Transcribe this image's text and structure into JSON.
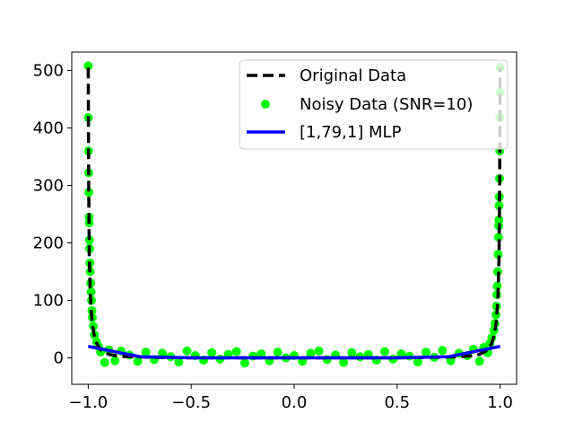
{
  "chart_data": {
    "type": "line",
    "title": "",
    "xlabel": "",
    "ylabel": "",
    "xlim": [
      -1.08,
      1.08
    ],
    "ylim": [
      -46,
      532
    ],
    "grid": false,
    "legend_placement": "top-right",
    "x_ticks": [
      -1.0,
      -0.5,
      0.0,
      0.5,
      1.0
    ],
    "x_tick_labels": [
      "−1.0",
      "−0.5",
      "0.0",
      "0.5",
      "1.0"
    ],
    "y_ticks": [
      0,
      100,
      200,
      300,
      400,
      500
    ],
    "y_tick_labels": [
      "0",
      "100",
      "200",
      "300",
      "400",
      "500"
    ],
    "series": [
      {
        "name": "Original Data",
        "kind": "line",
        "style": "dashed",
        "color": "#000000",
        "x": [
          -0.9999,
          -0.998,
          -0.995,
          -0.99,
          -0.985,
          -0.98,
          -0.97,
          -0.96,
          -0.94,
          -0.9,
          -0.85,
          -0.8,
          -0.7,
          -0.5,
          -0.2,
          0.0,
          0.2,
          0.5,
          0.7,
          0.8,
          0.85,
          0.9,
          0.94,
          0.96,
          0.97,
          0.98,
          0.985,
          0.99,
          0.995,
          0.998,
          0.9999
        ],
        "y": [
          505,
          320,
          180,
          110,
          80,
          58,
          38,
          26,
          14,
          6,
          3,
          2,
          1,
          0,
          0,
          0,
          0,
          0,
          1,
          2,
          3,
          6,
          14,
          26,
          38,
          58,
          80,
          110,
          180,
          320,
          505
        ]
      },
      {
        "name": "Noisy Data (SNR=10)",
        "kind": "scatter",
        "color": "#00ff00",
        "x": [
          -1.0,
          -0.9995,
          -0.999,
          -0.998,
          -0.997,
          -0.996,
          -0.995,
          -0.994,
          -0.993,
          -0.992,
          -0.99,
          -0.988,
          -0.986,
          -0.984,
          -0.982,
          -0.98,
          -0.975,
          -0.97,
          -0.96,
          -0.95,
          -0.94,
          -0.92,
          -0.9,
          -0.87,
          -0.84,
          -0.8,
          -0.76,
          -0.72,
          -0.68,
          -0.64,
          -0.6,
          -0.56,
          -0.52,
          -0.48,
          -0.44,
          -0.4,
          -0.36,
          -0.32,
          -0.28,
          -0.24,
          -0.2,
          -0.16,
          -0.12,
          -0.08,
          -0.04,
          0.0,
          0.04,
          0.08,
          0.12,
          0.16,
          0.2,
          0.24,
          0.28,
          0.32,
          0.36,
          0.4,
          0.44,
          0.48,
          0.52,
          0.56,
          0.6,
          0.64,
          0.68,
          0.72,
          0.76,
          0.8,
          0.84,
          0.87,
          0.9,
          0.92,
          0.94,
          0.95,
          0.96,
          0.97,
          0.975,
          0.98,
          0.982,
          0.984,
          0.986,
          0.988,
          0.99,
          0.992,
          0.993,
          0.994,
          0.995,
          0.996,
          0.997,
          0.998,
          0.999,
          0.9995,
          1.0
        ],
        "y": [
          508,
          418,
          360,
          322,
          288,
          245,
          235,
          205,
          190,
          165,
          150,
          130,
          115,
          100,
          82,
          70,
          55,
          40,
          28,
          20,
          10,
          -8,
          14,
          -5,
          12,
          5,
          -6,
          10,
          -3,
          8,
          2,
          -7,
          12,
          4,
          -4,
          9,
          -2,
          6,
          11,
          -9,
          3,
          7,
          -5,
          10,
          0,
          4,
          -6,
          8,
          12,
          -3,
          5,
          -8,
          9,
          2,
          6,
          -4,
          11,
          -2,
          7,
          3,
          -7,
          10,
          1,
          13,
          -5,
          8,
          4,
          15,
          -6,
          18,
          9,
          25,
          35,
          48,
          60,
          75,
          90,
          110,
          125,
          150,
          180,
          210,
          230,
          240,
          265,
          280,
          312,
          360,
          418,
          462,
          505
        ]
      },
      {
        "name": "[1,79,1] MLP",
        "kind": "line",
        "style": "solid",
        "color": "#0000ff",
        "x": [
          -1.0,
          -0.75,
          -0.5,
          0.0,
          0.5,
          0.75,
          1.0
        ],
        "y": [
          20,
          2,
          0,
          0,
          0,
          2,
          20
        ]
      }
    ]
  }
}
